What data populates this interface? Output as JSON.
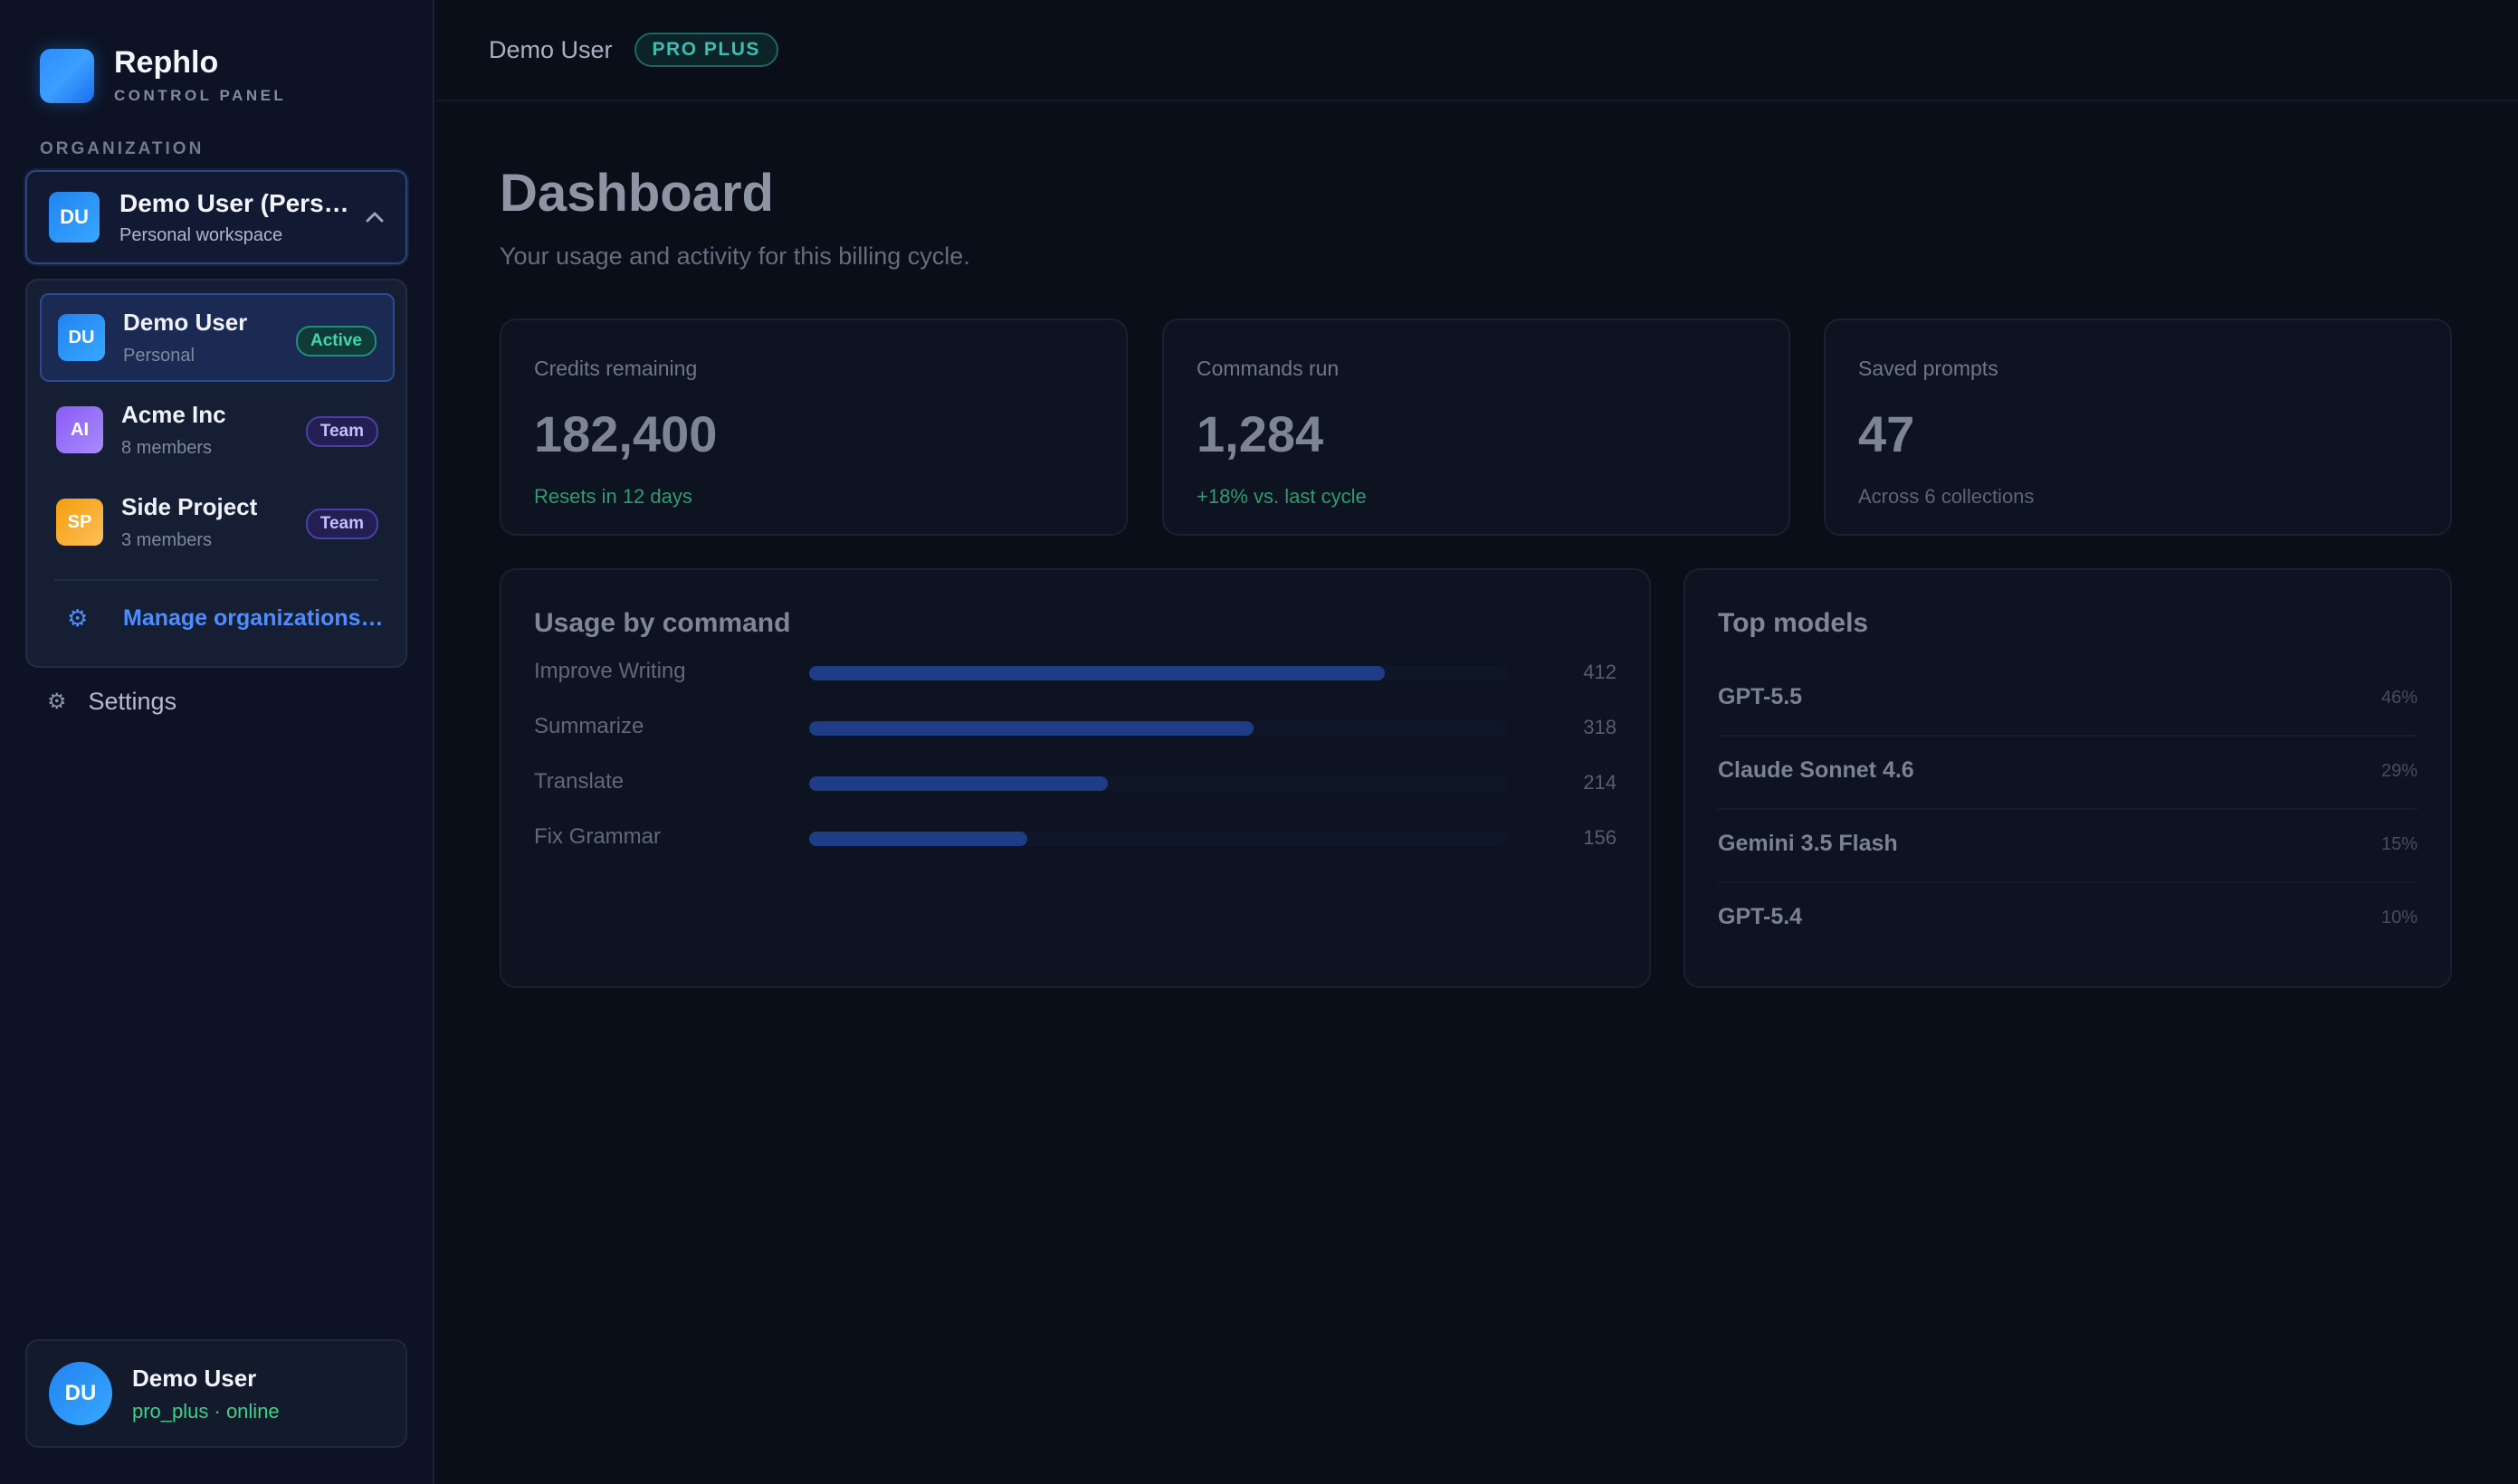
{
  "brand": {
    "name": "Rephlo",
    "subtitle": "CONTROL PANEL"
  },
  "org_section_label": "ORGANIZATION",
  "org_selector": {
    "initials": "DU",
    "name": "Demo User (Pers…",
    "subtitle": "Personal workspace"
  },
  "org_dropdown": {
    "items": [
      {
        "initials": "DU",
        "name": "Demo User",
        "subtitle": "Personal",
        "badge": "Active"
      },
      {
        "initials": "AI",
        "name": "Acme Inc",
        "subtitle": "8 members",
        "badge": "Team"
      },
      {
        "initials": "SP",
        "name": "Side Project",
        "subtitle": "3 members",
        "badge": "Team"
      }
    ],
    "manage_icon": "gear-icon",
    "manage_label": "Manage organizations…"
  },
  "nav": {
    "settings_icon": "gear-icon",
    "settings_label": "Settings"
  },
  "user_card": {
    "initials": "DU",
    "name": "Demo User",
    "status": "pro_plus · online"
  },
  "topbar": {
    "user": "Demo User",
    "plan": "PRO PLUS"
  },
  "page": {
    "title": "Dashboard",
    "subtitle": "Your usage and activity for this billing cycle."
  },
  "stats": [
    {
      "label": "Credits remaining",
      "value": "182,400",
      "foot": "Resets in 12 days",
      "foot_color": "#2f9b6f"
    },
    {
      "label": "Commands run",
      "value": "1,284",
      "foot": "+18% vs. last cycle",
      "foot_color": "#2f9b6f"
    },
    {
      "label": "Saved prompts",
      "value": "47",
      "foot": "Across 6 collections",
      "foot_color": "#5c6477"
    }
  ],
  "usage": {
    "title": "Usage by command",
    "max": 500,
    "rows": [
      {
        "label": "Improve Writing",
        "value": 412
      },
      {
        "label": "Summarize",
        "value": 318
      },
      {
        "label": "Translate",
        "value": 214
      },
      {
        "label": "Fix Grammar",
        "value": 156
      }
    ]
  },
  "models": {
    "title": "Top models",
    "rows": [
      {
        "name": "GPT-5.5",
        "pct": "46%"
      },
      {
        "name": "Claude Sonnet 4.6",
        "pct": "29%"
      },
      {
        "name": "Gemini 3.5 Flash",
        "pct": "15%"
      },
      {
        "name": "GPT-5.4",
        "pct": "10%"
      }
    ]
  },
  "colors": {
    "accent": "#4d8dff",
    "bar": "#1f3d86",
    "success": "#3fd08a"
  }
}
